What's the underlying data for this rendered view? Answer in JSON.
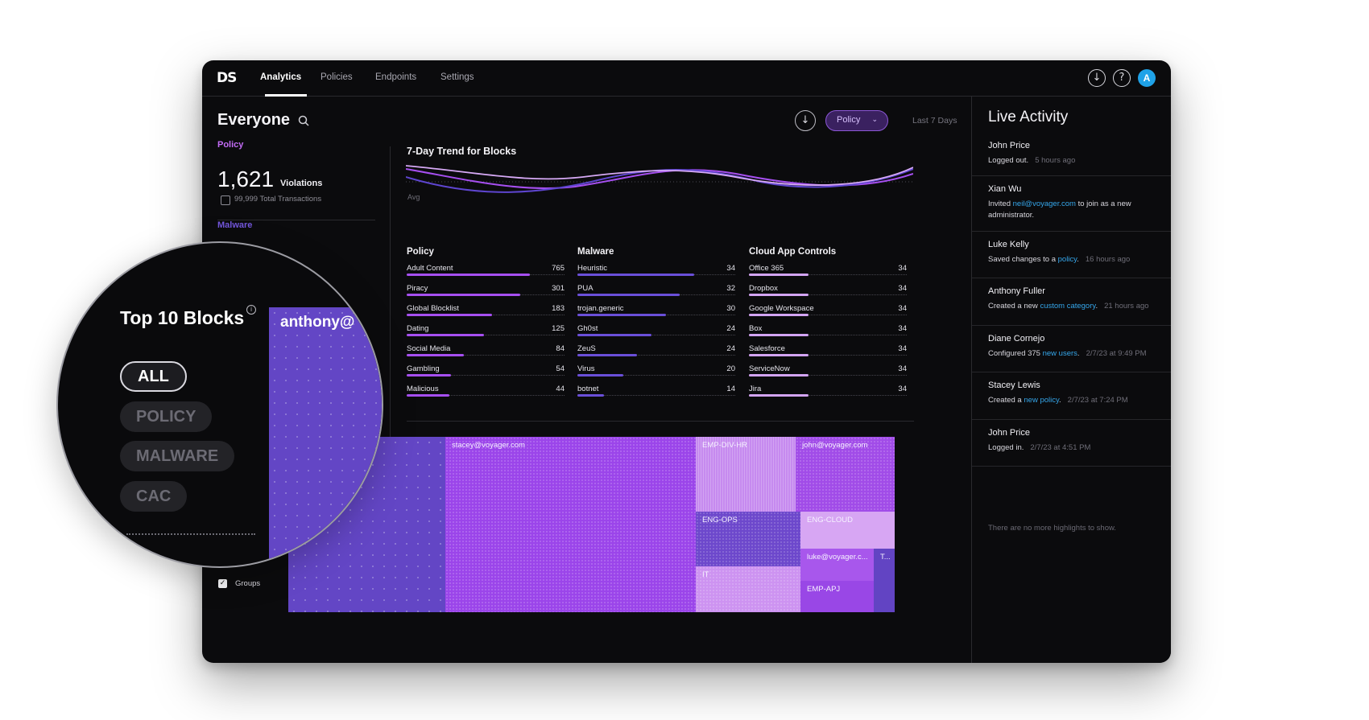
{
  "nav": {
    "logo": "DS",
    "tabs": [
      "Analytics",
      "Policies",
      "Endpoints",
      "Settings"
    ],
    "active_tab": "Analytics",
    "icons": [
      "download-icon",
      "help-icon"
    ],
    "avatar_initial": "A"
  },
  "header": {
    "title": "Everyone",
    "filter_label": "Policy",
    "range_label": "Last 7 Days"
  },
  "summary": {
    "section_policy": "Policy",
    "violations_count": "1,621",
    "violations_label": "Violations",
    "transactions": "99,999 Total Transactions",
    "section_malware": "Malware"
  },
  "trend": {
    "title": "7-Day Trend for Blocks",
    "avg_label": "Avg"
  },
  "breakdown": {
    "policy": {
      "title": "Policy",
      "rows": [
        {
          "label": "Adult Content",
          "value": "765",
          "fill": 0.78
        },
        {
          "label": "Piracy",
          "value": "301",
          "fill": 0.72
        },
        {
          "label": "Global Blocklist",
          "value": "183",
          "fill": 0.54
        },
        {
          "label": "Dating",
          "value": "125",
          "fill": 0.49
        },
        {
          "label": "Social Media",
          "value": "84",
          "fill": 0.36
        },
        {
          "label": "Gambling",
          "value": "54",
          "fill": 0.28
        },
        {
          "label": "Malicious",
          "value": "44",
          "fill": 0.27
        }
      ]
    },
    "malware": {
      "title": "Malware",
      "rows": [
        {
          "label": "Heuristic",
          "value": "34",
          "fill": 0.74
        },
        {
          "label": "PUA",
          "value": "32",
          "fill": 0.65
        },
        {
          "label": "trojan.generic",
          "value": "30",
          "fill": 0.56
        },
        {
          "label": "Gh0st",
          "value": "24",
          "fill": 0.47
        },
        {
          "label": "ZeuS",
          "value": "24",
          "fill": 0.38
        },
        {
          "label": "Virus",
          "value": "20",
          "fill": 0.29
        },
        {
          "label": "botnet",
          "value": "14",
          "fill": 0.17
        }
      ]
    },
    "cloud": {
      "title": "Cloud App Controls",
      "rows": [
        {
          "label": "Office 365",
          "value": "34",
          "fill": 0.38
        },
        {
          "label": "Dropbox",
          "value": "34",
          "fill": 0.38
        },
        {
          "label": "Google Workspace",
          "value": "34",
          "fill": 0.38
        },
        {
          "label": "Box",
          "value": "34",
          "fill": 0.38
        },
        {
          "label": "Salesforce",
          "value": "34",
          "fill": 0.38
        },
        {
          "label": "ServiceNow",
          "value": "34",
          "fill": 0.38
        },
        {
          "label": "Jira",
          "value": "34",
          "fill": 0.38
        }
      ]
    }
  },
  "treemap": {
    "cells": [
      "stacey@voyager.com",
      "EMP-DIV-HR",
      "john@voyager.com",
      "ENG-OPS",
      "ENG-CLOUD",
      "IT",
      "luke@voyager.c...",
      "T...",
      "EMP-APJ"
    ]
  },
  "groups_label": "Groups",
  "live": {
    "title": "Live Activity",
    "items": [
      {
        "name": "John Price",
        "text": "Logged out.",
        "time": "5 hours ago"
      },
      {
        "name": "Xian Wu",
        "pre": "Invited ",
        "link": "neil@voyager.com",
        "post": " to join as a new administrator."
      },
      {
        "name": "Luke Kelly",
        "pre": "Saved changes to a ",
        "link": "policy",
        "post": ".",
        "time": "16 hours ago"
      },
      {
        "name": "Anthony Fuller",
        "pre": "Created a new ",
        "link": "custom category",
        "post": ".",
        "time": "21 hours ago"
      },
      {
        "name": "Diane Cornejo",
        "pre": "Configured 375 ",
        "link": "new users",
        "post": ".",
        "time": "2/7/23 at 9:49 PM"
      },
      {
        "name": "Stacey Lewis",
        "pre": "Created a ",
        "link": "new policy",
        "post": ".",
        "time": "2/7/23 at 7:24 PM"
      },
      {
        "name": "John Price",
        "text": "Logged in.",
        "time": "2/7/23 at 4:51 PM"
      }
    ],
    "end_text": "There are no more highlights to show."
  },
  "magnifier": {
    "title": "Top 10 Blocks",
    "pills": [
      "ALL",
      "POLICY",
      "MALWARE",
      "CAC"
    ],
    "active_pill": "ALL",
    "cell_label": "anthony@"
  },
  "colors": {
    "accent": "#a855f7",
    "policy_bar": "#a64ff0",
    "malware_bar": "#6a4fd8",
    "cloud_bar": "#d2a4f2",
    "link": "#35a6ea"
  }
}
